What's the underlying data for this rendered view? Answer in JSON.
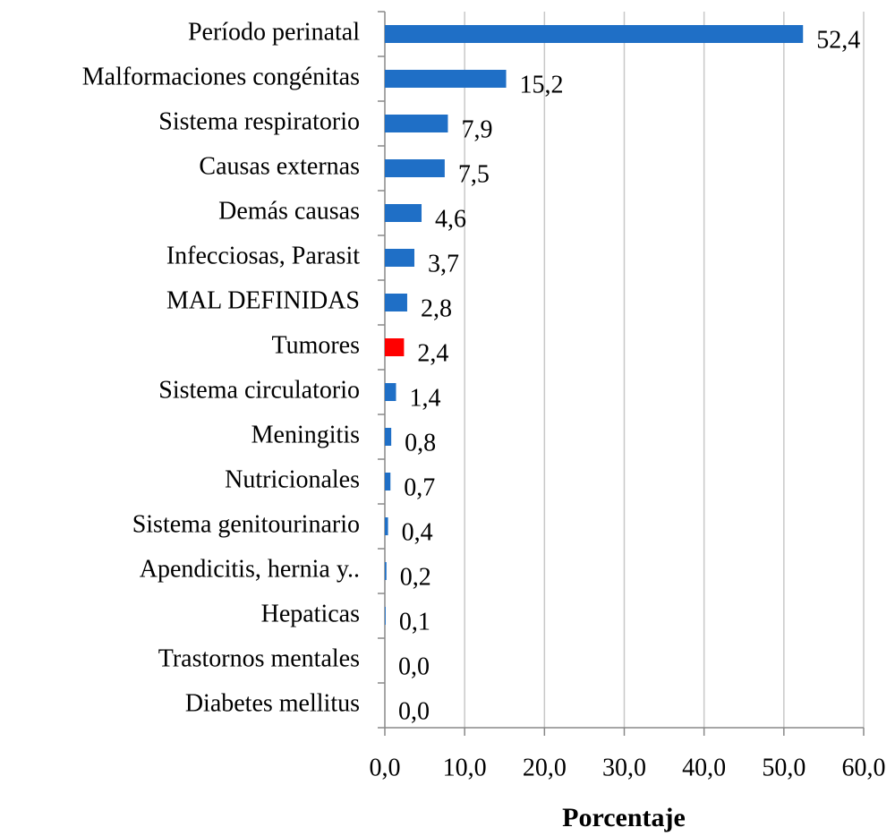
{
  "chart_data": {
    "type": "bar",
    "orientation": "horizontal",
    "categories": [
      "Período perinatal",
      "Malformaciones congénitas",
      "Sistema respiratorio",
      "Causas externas",
      "Demás causas",
      "Infecciosas, Parasit",
      "MAL DEFINIDAS",
      "Tumores",
      "Sistema circulatorio",
      "Meningitis",
      "Nutricionales",
      "Sistema genitourinario",
      "Apendicitis, hernia y..",
      "Hepaticas",
      "Trastornos mentales",
      "Diabetes mellitus"
    ],
    "values": [
      52.4,
      15.2,
      7.9,
      7.5,
      4.6,
      3.7,
      2.8,
      2.4,
      1.4,
      0.8,
      0.7,
      0.4,
      0.2,
      0.1,
      0.0,
      0.0
    ],
    "value_labels": [
      "52,4",
      "15,2",
      "7,9",
      "7,5",
      "4,6",
      "3,7",
      "2,8",
      "2,4",
      "1,4",
      "0,8",
      "0,7",
      "0,4",
      "0,2",
      "0,1",
      "0,0",
      "0,0"
    ],
    "colors": [
      "#1f6fc6",
      "#1f6fc6",
      "#1f6fc6",
      "#1f6fc6",
      "#1f6fc6",
      "#1f6fc6",
      "#1f6fc6",
      "#ff0000",
      "#1f6fc6",
      "#1f6fc6",
      "#1f6fc6",
      "#1f6fc6",
      "#1f6fc6",
      "#1f6fc6",
      "#1f6fc6",
      "#1f6fc6"
    ],
    "xlabel": "Porcentaje",
    "xlim": [
      0,
      60
    ],
    "xticks": [
      {
        "value": 0,
        "label": "0,0"
      },
      {
        "value": 10,
        "label": "10,0"
      },
      {
        "value": 20,
        "label": "20,0"
      },
      {
        "value": 30,
        "label": "30,0"
      },
      {
        "value": 40,
        "label": "40,0"
      },
      {
        "value": 50,
        "label": "50,0"
      },
      {
        "value": 60,
        "label": "60,0"
      }
    ],
    "grid": true
  }
}
